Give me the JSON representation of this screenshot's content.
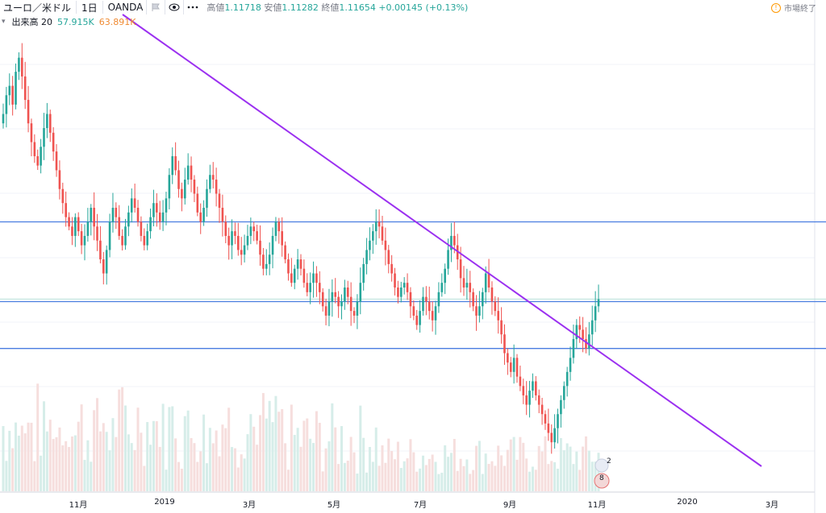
{
  "header": {
    "symbol": "ユーロ／米ドル",
    "interval": "1日",
    "source": "OANDA",
    "ohlc": {
      "high_label": "高値",
      "high": "1.11718",
      "low_label": "安値",
      "low": "1.11282",
      "close_label": "終値",
      "close": "1.11654",
      "change": "+0.00145 (+0.13%)"
    },
    "market_status": "市場終了"
  },
  "volume_legend": {
    "label": "出来高 20",
    "value1": "57.915K",
    "value2": "63.891K"
  },
  "x_axis_ticks": [
    "11月",
    "2019",
    "3月",
    "5月",
    "7月",
    "9月",
    "11月",
    "2020",
    "3月"
  ],
  "events": {
    "badge_count": "2",
    "badge_count2": "8"
  },
  "colors": {
    "up": "#26a69a",
    "down": "#ef5350",
    "hline": "#4a7de0",
    "trend": "#9b30f0"
  },
  "chart_data": {
    "type": "candlestick",
    "series_note": "EUR/USD daily",
    "price_levels": [
      1.133,
      1.116,
      1.106
    ],
    "trendline": {
      "from": [
        1.153
      ],
      "to": [
        1.096
      ]
    },
    "closes": [
      1.156,
      1.16,
      1.162,
      1.158,
      1.165,
      1.168,
      1.164,
      1.159,
      1.154,
      1.15,
      1.147,
      1.145,
      1.149,
      1.153,
      1.156,
      1.152,
      1.148,
      1.144,
      1.14,
      1.137,
      1.134,
      1.132,
      1.13,
      1.134,
      1.131,
      1.128,
      1.13,
      1.133,
      1.136,
      1.132,
      1.129,
      1.125,
      1.122,
      1.127,
      1.133,
      1.136,
      1.134,
      1.13,
      1.128,
      1.132,
      1.135,
      1.138,
      1.136,
      1.133,
      1.13,
      1.128,
      1.131,
      1.134,
      1.137,
      1.135,
      1.133,
      1.135,
      1.138,
      1.143,
      1.147,
      1.144,
      1.14,
      1.138,
      1.142,
      1.145,
      1.142,
      1.139,
      1.135,
      1.133,
      1.136,
      1.14,
      1.143,
      1.142,
      1.139,
      1.136,
      1.133,
      1.13,
      1.128,
      1.131,
      1.13,
      1.127,
      1.126,
      1.128,
      1.13,
      1.132,
      1.131,
      1.129,
      1.126,
      1.123,
      1.124,
      1.126,
      1.13,
      1.133,
      1.131,
      1.128,
      1.125,
      1.122,
      1.12,
      1.123,
      1.125,
      1.123,
      1.12,
      1.118,
      1.12,
      1.122,
      1.12,
      1.118,
      1.115,
      1.113,
      1.116,
      1.118,
      1.117,
      1.115,
      1.116,
      1.119,
      1.117,
      1.114,
      1.113,
      1.116,
      1.12,
      1.124,
      1.127,
      1.129,
      1.131,
      1.133,
      1.132,
      1.129,
      1.127,
      1.124,
      1.122,
      1.119,
      1.117,
      1.119,
      1.12,
      1.118,
      1.115,
      1.113,
      1.111,
      1.114,
      1.117,
      1.116,
      1.114,
      1.112,
      1.115,
      1.118,
      1.12,
      1.123,
      1.127,
      1.13,
      1.128,
      1.125,
      1.121,
      1.119,
      1.12,
      1.118,
      1.115,
      1.113,
      1.115,
      1.118,
      1.122,
      1.119,
      1.116,
      1.114,
      1.112,
      1.109,
      1.105,
      1.103,
      1.101,
      1.104,
      1.1,
      1.098,
      1.096,
      1.094,
      1.097,
      1.099,
      1.096,
      1.094,
      1.092,
      1.09,
      1.088,
      1.086,
      1.089,
      1.092,
      1.095,
      1.098,
      1.101,
      1.104,
      1.108,
      1.111,
      1.11,
      1.108,
      1.106,
      1.109,
      1.112,
      1.115,
      1.1165
    ]
  }
}
